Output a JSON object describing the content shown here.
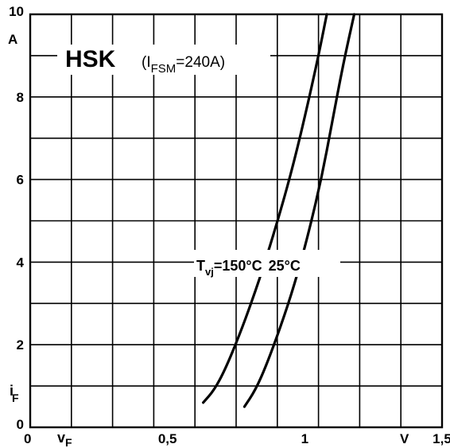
{
  "chart_data": {
    "type": "line",
    "title": {
      "brand": "HSK",
      "prefix": "(I",
      "sub": "FSM",
      "suffix": "=240A)"
    },
    "xlim": [
      0,
      1.5
    ],
    "ylim": [
      0,
      10
    ],
    "grid": true,
    "x_ticks": [
      {
        "value": 0,
        "label": "0"
      },
      {
        "value": 0.5,
        "label": "0,5"
      },
      {
        "value": 1,
        "label": "1"
      },
      {
        "value": 1.5,
        "label": "1,5"
      }
    ],
    "y_ticks": [
      {
        "value": 0,
        "label": "0"
      },
      {
        "value": 2,
        "label": "2"
      },
      {
        "value": 4,
        "label": "4"
      },
      {
        "value": 6,
        "label": "6"
      },
      {
        "value": 8,
        "label": "8"
      },
      {
        "value": 10,
        "label": "10"
      }
    ],
    "x_unit": "V",
    "y_unit": "A",
    "xlabel": {
      "main": "v",
      "sub": "F"
    },
    "ylabel": {
      "main": "i",
      "sub": "F"
    },
    "curve_label": {
      "prefix": "T",
      "sub": "vj",
      "first": "=150°C",
      "second": "25°C"
    },
    "series": [
      {
        "name": "150°C",
        "x": [
          0.63,
          0.67,
          0.71,
          0.76,
          0.81,
          0.86,
          0.91,
          0.96,
          1.01,
          1.05,
          1.08
        ],
        "y": [
          0.6,
          0.9,
          1.4,
          2.2,
          3.1,
          4.1,
          5.2,
          6.4,
          7.8,
          9.0,
          10.0
        ]
      },
      {
        "name": "25°C",
        "x": [
          0.78,
          0.82,
          0.86,
          0.91,
          0.96,
          1.01,
          1.06,
          1.1,
          1.14,
          1.18
        ],
        "y": [
          0.5,
          0.9,
          1.5,
          2.4,
          3.4,
          4.6,
          6.0,
          7.4,
          8.8,
          10.0
        ]
      }
    ]
  }
}
